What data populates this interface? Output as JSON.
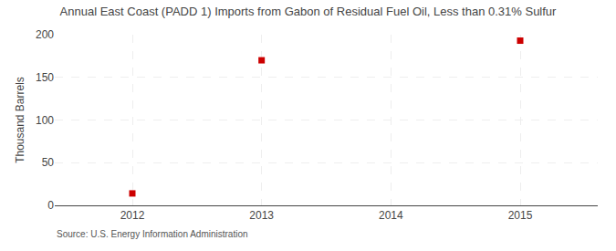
{
  "chart_data": {
    "type": "scatter",
    "title": "Annual East Coast (PADD 1) Imports from Gabon of Residual Fuel Oil, Less than 0.31% Sulfur",
    "ylabel": "Thousand Barrels",
    "annotations": [
      "Source: U.S. Energy Information Administration"
    ],
    "x": [
      2012,
      2013,
      2015
    ],
    "values": [
      14,
      170,
      193
    ],
    "color": "#cc0000",
    "marker": "square",
    "xlim": [
      2011.4,
      2015.6
    ],
    "xticks": [
      2012,
      2013,
      2014,
      2015
    ],
    "ylim": [
      0,
      200
    ],
    "yticks": [
      0,
      50,
      100,
      150,
      200
    ],
    "grid": true
  }
}
